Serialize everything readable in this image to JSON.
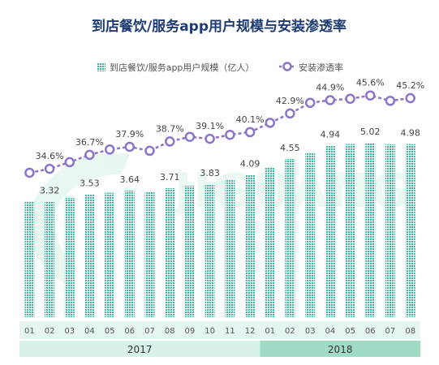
{
  "chart_data": {
    "type": "bar+line",
    "title": "到店餐饮/服务app用户规模与安装渗透率",
    "legend": {
      "placement": "top-center",
      "bar_series_name": "到店餐饮/服务app用户规模（亿人）",
      "line_series_name": "安装渗透率"
    },
    "categories": [
      "01",
      "02",
      "03",
      "04",
      "05",
      "06",
      "07",
      "08",
      "09",
      "10",
      "11",
      "12",
      "01",
      "02",
      "03",
      "04",
      "05",
      "06",
      "07",
      "08"
    ],
    "years": [
      {
        "label": "2017",
        "months": 12
      },
      {
        "label": "2018",
        "months": 8
      }
    ],
    "series": [
      {
        "name": "到店餐饮/服务app用户规模（亿人）",
        "kind": "bar",
        "values": [
          3.32,
          3.32,
          3.43,
          3.53,
          3.58,
          3.64,
          3.6,
          3.71,
          3.78,
          3.83,
          3.97,
          4.09,
          4.3,
          4.55,
          4.72,
          4.94,
          4.98,
          5.02,
          4.97,
          4.98
        ],
        "labels": [
          "",
          "3.32",
          "",
          "3.53",
          "",
          "3.64",
          "",
          "3.71",
          "",
          "3.83",
          "",
          "4.09",
          "",
          "4.55",
          "",
          "4.94",
          "",
          "5.02",
          "",
          "4.98"
        ],
        "ylim": [
          0,
          5.6
        ]
      },
      {
        "name": "安装渗透率",
        "kind": "line",
        "values": [
          34.0,
          34.6,
          35.6,
          36.7,
          37.5,
          37.9,
          37.3,
          38.7,
          39.4,
          39.1,
          39.7,
          40.1,
          41.5,
          42.9,
          44.5,
          44.9,
          45.1,
          45.6,
          44.8,
          45.2
        ],
        "labels": [
          "",
          "34.6%",
          "",
          "36.7%",
          "",
          "37.9%",
          "",
          "38.7%",
          "",
          "39.1%",
          "",
          "40.1%",
          "",
          "42.9%",
          "",
          "44.9%",
          "",
          "45.6%",
          "",
          "45.2%"
        ],
        "ylim": [
          25,
          48
        ]
      }
    ],
    "watermark": "JIGUANG",
    "colors": {
      "bar": "#3dbfa8",
      "line": "#8b74c9",
      "title": "#1e3c72",
      "month_band": "#e5f5ef",
      "year_band_2017": "#d9f2e8",
      "year_band_2018": "#9fdcc3"
    }
  }
}
